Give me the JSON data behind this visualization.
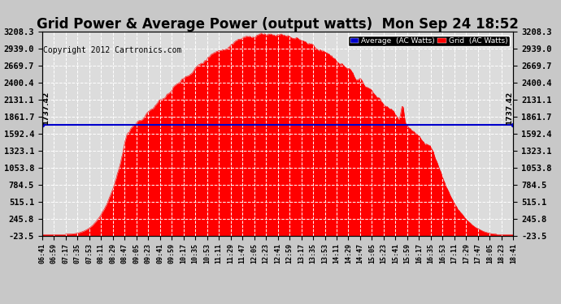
{
  "title": "Grid Power & Average Power (output watts)  Mon Sep 24 18:52",
  "copyright": "Copyright 2012 Cartronics.com",
  "average_value": 1737.42,
  "yticks": [
    -23.5,
    245.8,
    515.1,
    784.5,
    1053.8,
    1323.1,
    1592.4,
    1861.7,
    2131.1,
    2400.4,
    2669.7,
    2939.0,
    3208.3
  ],
  "ymin": -23.5,
  "ymax": 3208.3,
  "fill_color": "#FF0000",
  "line_color": "#FF0000",
  "average_line_color": "#0000CC",
  "bg_color": "#C8C8C8",
  "plot_bg_color": "#DCDCDC",
  "grid_color": "#FFFFFF",
  "legend_avg_bg": "#0000CC",
  "legend_grid_bg": "#FF0000",
  "title_fontsize": 12,
  "copyright_fontsize": 7,
  "xtick_labels": [
    "06:41",
    "06:59",
    "07:17",
    "07:35",
    "07:53",
    "08:11",
    "08:29",
    "08:47",
    "09:05",
    "09:23",
    "09:41",
    "09:59",
    "10:17",
    "10:35",
    "10:53",
    "11:11",
    "11:29",
    "11:47",
    "12:05",
    "12:23",
    "12:41",
    "12:59",
    "13:17",
    "13:35",
    "13:53",
    "14:11",
    "14:29",
    "14:47",
    "15:05",
    "15:23",
    "15:41",
    "15:59",
    "16:17",
    "16:35",
    "16:53",
    "17:11",
    "17:29",
    "17:47",
    "18:05",
    "18:23",
    "18:41"
  ]
}
